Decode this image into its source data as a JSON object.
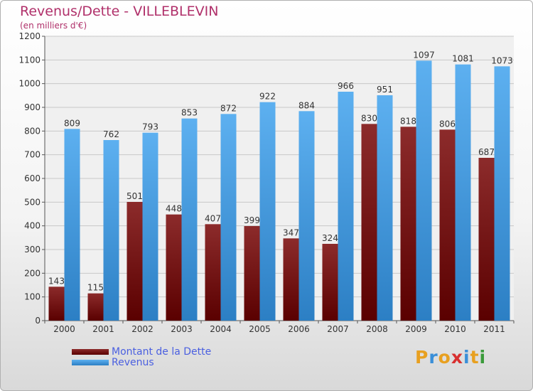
{
  "header": {
    "title": "Revenus/Dette - VILLEBLEVIN",
    "subtitle": "(en milliers d'€)"
  },
  "logo_text": "Proxiti",
  "colors": {
    "dette": "#7a1a1a",
    "revenus": "#4aa3e8",
    "grid": "#c8c8c8"
  },
  "chart_data": {
    "type": "bar",
    "categories": [
      "2000",
      "2001",
      "2002",
      "2003",
      "2004",
      "2005",
      "2006",
      "2007",
      "2008",
      "2009",
      "2010",
      "2011"
    ],
    "series": [
      {
        "name": "Montant de la Dette",
        "values": [
          143,
          115,
          501,
          448,
          407,
          399,
          347,
          324,
          830,
          818,
          806,
          687
        ]
      },
      {
        "name": "Revenus",
        "values": [
          809,
          762,
          793,
          853,
          872,
          922,
          884,
          966,
          951,
          1097,
          1081,
          1073
        ]
      }
    ],
    "yticks": [
      0,
      100,
      200,
      300,
      400,
      500,
      600,
      700,
      800,
      900,
      1000,
      1100,
      1200
    ],
    "ylim": [
      0,
      1200
    ],
    "grid": true,
    "legend_position": "bottom-left"
  }
}
